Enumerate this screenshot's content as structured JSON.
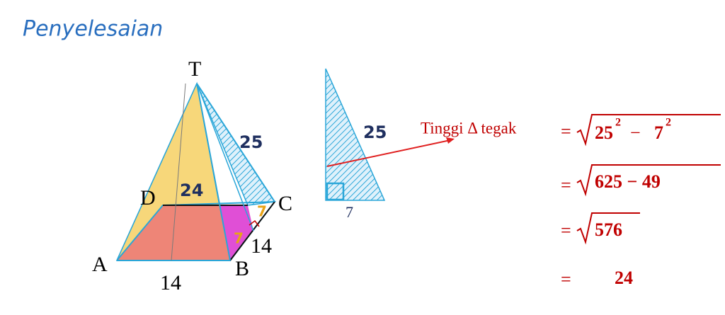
{
  "title": "Penyelesaian",
  "pyramid": {
    "vertices": {
      "T": "T",
      "D": "D",
      "C": "C",
      "A": "A",
      "B": "B"
    },
    "slant_height": "25",
    "height_face": "24",
    "half_base_back": "7",
    "half_base_front": "7",
    "side_ab": "14",
    "side_bc": "14"
  },
  "triangle": {
    "hypotenuse": "25",
    "base": "7"
  },
  "calculation": {
    "label": "Tinggi Δ tegak",
    "equals": "=",
    "step1": {
      "base1": "25",
      "exp1": "2",
      "minus": "−",
      "base2": "7",
      "exp2": "2"
    },
    "step2": "625 − 49",
    "step3": "576",
    "result": "24"
  }
}
